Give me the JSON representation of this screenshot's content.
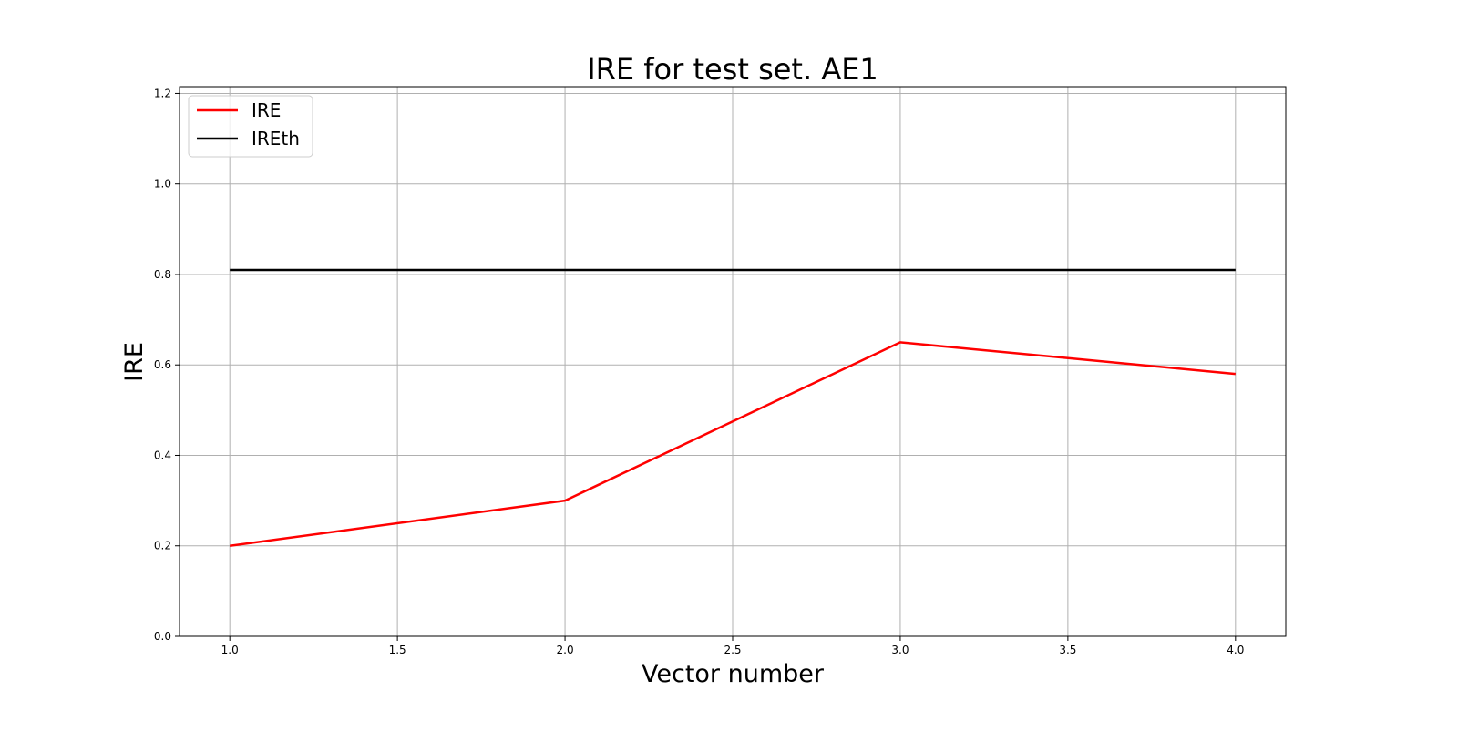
{
  "chart_data": {
    "type": "line",
    "title": "IRE for test set. AE1",
    "xlabel": "Vector number",
    "ylabel": "IRE",
    "xlim": [
      0.85,
      4.15
    ],
    "ylim": [
      0,
      1.215
    ],
    "xticks": [
      1.0,
      1.5,
      2.0,
      2.5,
      3.0,
      3.5,
      4.0
    ],
    "xtick_labels": [
      "1.0",
      "1.5",
      "2.0",
      "2.5",
      "3.0",
      "3.5",
      "4.0"
    ],
    "yticks": [
      0.0,
      0.2,
      0.4,
      0.6,
      0.8,
      1.0,
      1.2
    ],
    "ytick_labels": [
      "0.0",
      "0.2",
      "0.4",
      "0.6",
      "0.8",
      "1.0",
      "1.2"
    ],
    "grid": true,
    "legend_position": "top-left",
    "x": [
      1,
      2,
      3,
      4
    ],
    "series": [
      {
        "name": "IRE",
        "color": "#ff0000",
        "values": [
          0.2,
          0.3,
          0.65,
          0.58
        ]
      },
      {
        "name": "IREth",
        "color": "#000000",
        "values": [
          0.81,
          0.81,
          0.81,
          0.81
        ]
      }
    ]
  }
}
